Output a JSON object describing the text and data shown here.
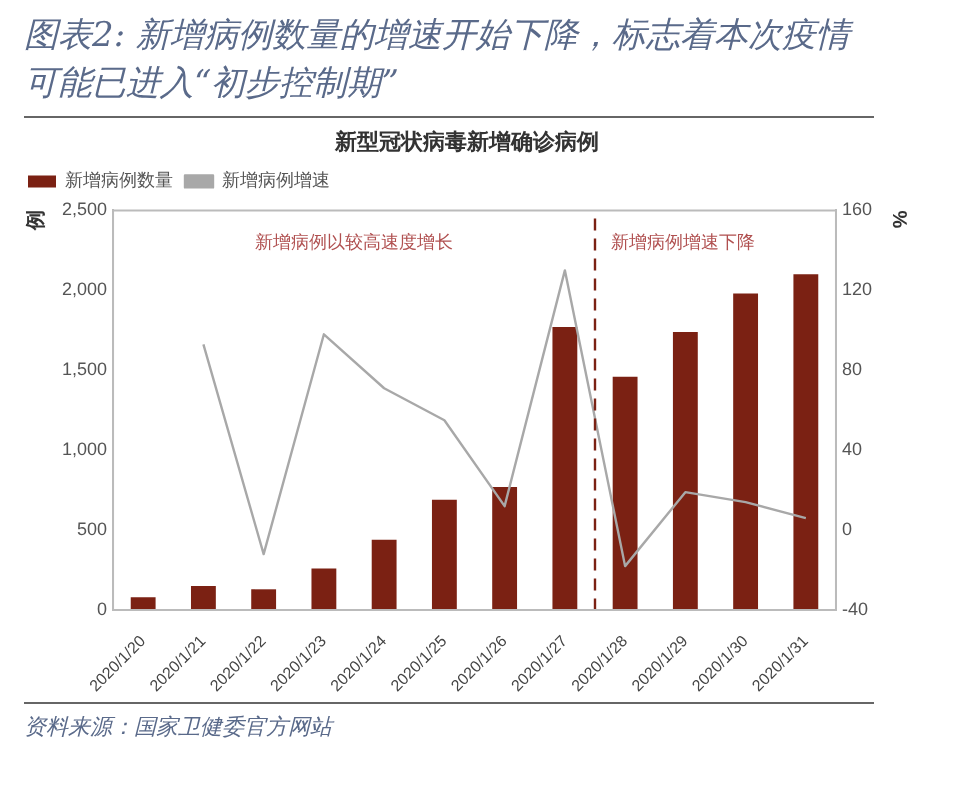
{
  "chart_data": {
    "type": "bar",
    "title": "图表2: 新增病例数量的增速开始下降，标志着本次疫情可能已进入“初步控制期”",
    "subtitle": "新型冠状病毒新增确诊病例",
    "ylabel": "例",
    "y2label": "%",
    "categories": [
      "2020/1/20",
      "2020/1/21",
      "2020/1/22",
      "2020/1/23",
      "2020/1/24",
      "2020/1/25",
      "2020/1/26",
      "2020/1/27",
      "2020/1/28",
      "2020/1/29",
      "2020/1/30",
      "2020/1/31"
    ],
    "series": [
      {
        "name": "新增病例数量",
        "color": "#7b2113",
        "values": [
          80,
          150,
          130,
          260,
          440,
          690,
          770,
          1770,
          1460,
          1740,
          1980,
          2100
        ]
      },
      {
        "name": "新增病例增速",
        "type": "line",
        "axis": "y2",
        "color": "#a8a8a8",
        "values": [
          null,
          93,
          -12,
          98,
          71,
          55,
          12,
          130,
          -18,
          19,
          14,
          6
        ]
      }
    ],
    "ylim": [
      0,
      2500
    ],
    "yticks": [
      0,
      500,
      {
        "value": 1000,
        "label": "1,000"
      },
      {
        "value": 1500,
        "label": "1,500"
      },
      {
        "value": 2000,
        "label": "2,000"
      },
      {
        "value": 2500,
        "label": "2,500"
      }
    ],
    "y2lim": [
      -40,
      160
    ],
    "y2ticks": [
      -40,
      0,
      40,
      80,
      120,
      160
    ],
    "ref_lines": [
      {
        "axis": "x",
        "value": "2020/1/28",
        "label": "新增病例增速下降",
        "color": "#7b2113",
        "line_style": "dashed"
      }
    ],
    "annotations": [
      "新增病例以较高速度增长",
      "资料来源：国家卫健委官方网站"
    ],
    "legend": "top left",
    "grid": false,
    "marker": "none"
  }
}
